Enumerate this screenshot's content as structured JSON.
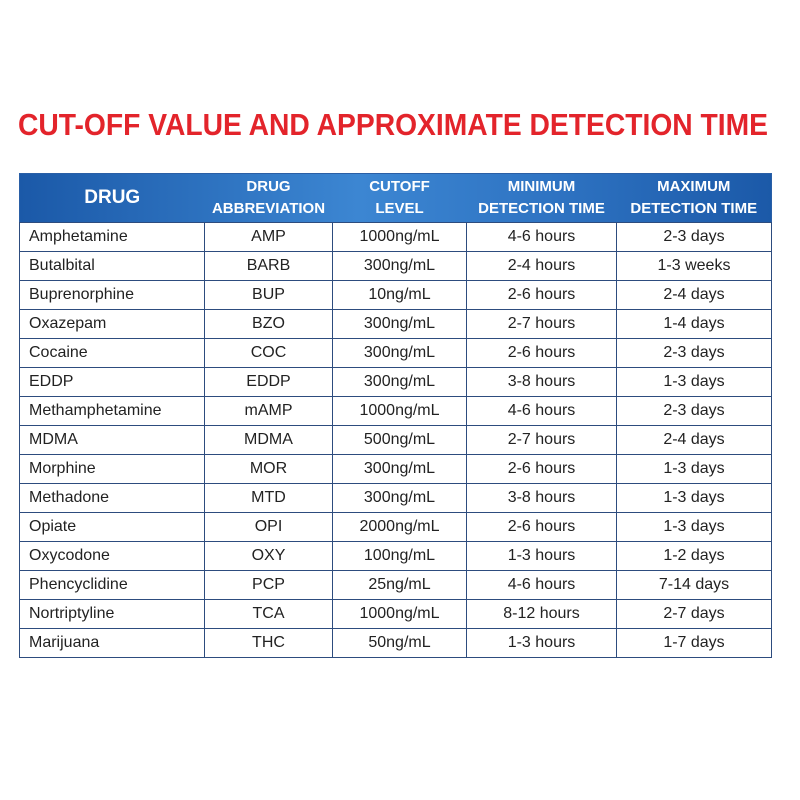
{
  "title": "CUT-OFF VALUE AND APPROXIMATE DETECTION TIME",
  "table": {
    "header": [
      [
        "DRUG"
      ],
      [
        "DRUG",
        "ABBREVIATION"
      ],
      [
        "CUTOFF",
        "LEVEL"
      ],
      [
        "MINIMUM",
        "DETECTION TIME"
      ],
      [
        "MAXIMUM",
        "DETECTION TIME"
      ]
    ],
    "rows": [
      [
        "Amphetamine",
        "AMP",
        "1000ng/mL",
        "4-6 hours",
        "2-3 days"
      ],
      [
        "Butalbital",
        "BARB",
        "300ng/mL",
        "2-4 hours",
        "1-3 weeks"
      ],
      [
        "Buprenorphine",
        "BUP",
        "10ng/mL",
        "2-6 hours",
        "2-4 days"
      ],
      [
        "Oxazepam",
        "BZO",
        "300ng/mL",
        "2-7 hours",
        "1-4 days"
      ],
      [
        "Cocaine",
        "COC",
        "300ng/mL",
        "2-6 hours",
        "2-3 days"
      ],
      [
        "EDDP",
        "EDDP",
        "300ng/mL",
        "3-8 hours",
        "1-3 days"
      ],
      [
        "Methamphetamine",
        "mAMP",
        "1000ng/mL",
        "4-6 hours",
        "2-3 days"
      ],
      [
        "MDMA",
        "MDMA",
        "500ng/mL",
        "2-7 hours",
        "2-4 days"
      ],
      [
        "Morphine",
        "MOR",
        "300ng/mL",
        "2-6 hours",
        "1-3 days"
      ],
      [
        "Methadone",
        "MTD",
        "300ng/mL",
        "3-8 hours",
        "1-3 days"
      ],
      [
        "Opiate",
        "OPI",
        "2000ng/mL",
        "2-6 hours",
        "1-3 days"
      ],
      [
        "Oxycodone",
        "OXY",
        "100ng/mL",
        "1-3 hours",
        "1-2 days"
      ],
      [
        "Phencyclidine",
        "PCP",
        "25ng/mL",
        "4-6 hours",
        "7-14 days"
      ],
      [
        "Nortriptyline",
        "TCA",
        "1000ng/mL",
        "8-12 hours",
        "2-7 days"
      ],
      [
        "Marijuana",
        "THC",
        "50ng/mL",
        "1-3 hours",
        "1-7 days"
      ]
    ]
  }
}
